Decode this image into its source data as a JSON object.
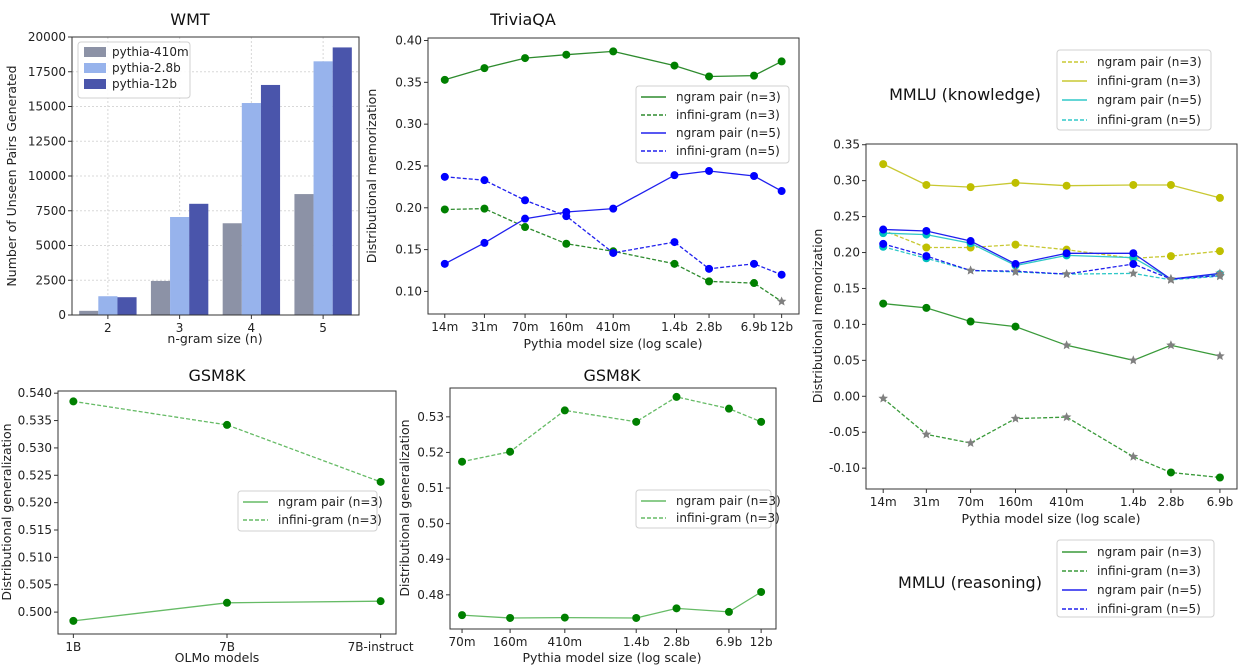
{
  "chart_data": [
    {
      "id": "wmt",
      "type": "bar",
      "title": "WMT",
      "xlabel": "n-gram size (n)",
      "ylabel": "Number of Unseen Pairs Generated",
      "categories": [
        "2",
        "3",
        "4",
        "5"
      ],
      "ylim": [
        0,
        20000
      ],
      "yticks": [
        "0",
        "2500",
        "5000",
        "7500",
        "10000",
        "12500",
        "15000",
        "17500",
        "20000"
      ],
      "ytick_values": [
        0,
        2500,
        5000,
        7500,
        10000,
        12500,
        15000,
        17500,
        20000
      ],
      "grid": true,
      "legend_placement": "top-left",
      "series": [
        {
          "name": "pythia-410m",
          "color": "#8c92a6",
          "values": [
            300,
            2450,
            6600,
            8700
          ]
        },
        {
          "name": "pythia-2.8b",
          "color": "#97b3ec",
          "values": [
            1350,
            7050,
            15250,
            18250
          ]
        },
        {
          "name": "pythia-12b",
          "color": "#4a55ab",
          "values": [
            1280,
            8000,
            16550,
            19250
          ]
        }
      ]
    },
    {
      "id": "trivia",
      "type": "line",
      "title": "TriviaQA",
      "xlabel": "Pythia model size (log scale)",
      "ylabel": "Distributional memorization",
      "xscale": "log",
      "x": [
        "14m",
        "31m",
        "70m",
        "160m",
        "410m",
        "1.4b",
        "2.8b",
        "6.9b",
        "12b"
      ],
      "x_values": [
        14000000,
        31000000,
        70000000,
        160000000,
        410000000,
        1400000000,
        2800000000,
        6900000000,
        12000000000
      ],
      "xlim": [
        10000000,
        17000000000
      ],
      "ylim": [
        0.073,
        0.403
      ],
      "yticks": [
        "0.10",
        "0.15",
        "0.20",
        "0.25",
        "0.30",
        "0.35",
        "0.40"
      ],
      "ytick_values": [
        0.1,
        0.15,
        0.2,
        0.25,
        0.3,
        0.35,
        0.4
      ],
      "grid": false,
      "legend_placement": "center-right",
      "series": [
        {
          "name": "ngram pair (n=3)",
          "color": "#008000",
          "line_color": "#2e8b2e",
          "dash": false,
          "values": [
            0.353,
            0.367,
            0.379,
            0.383,
            0.387,
            0.37,
            0.357,
            0.358,
            0.375
          ],
          "star_indices": []
        },
        {
          "name": "infini-gram (n=3)",
          "color": "#008000",
          "line_color": "#2e8b2e",
          "dash": true,
          "values": [
            0.198,
            0.199,
            0.177,
            0.157,
            0.148,
            0.133,
            0.112,
            0.11,
            0.088
          ],
          "star_indices": [
            8
          ]
        },
        {
          "name": "ngram pair (n=5)",
          "color": "#0000ff",
          "line_color": "#2020ee",
          "dash": false,
          "values": [
            0.133,
            0.158,
            0.187,
            0.195,
            0.199,
            0.239,
            0.244,
            0.238,
            0.22
          ],
          "star_indices": []
        },
        {
          "name": "infini-gram (n=5)",
          "color": "#0000ff",
          "line_color": "#2020ee",
          "dash": true,
          "values": [
            0.237,
            0.233,
            0.209,
            0.19,
            0.146,
            0.159,
            0.127,
            0.133,
            0.12
          ],
          "star_indices": []
        }
      ]
    },
    {
      "id": "mmlu",
      "type": "line",
      "titles": [
        "MMLU (knowledge)",
        "MMLU (reasoning)"
      ],
      "xlabel": "Pythia model size (log scale)",
      "ylabel": "Distributional memorization",
      "xscale": "log",
      "x": [
        "14m",
        "31m",
        "70m",
        "160m",
        "410m",
        "1.4b",
        "2.8b",
        "6.9b"
      ],
      "x_values": [
        14000000,
        31000000,
        70000000,
        160000000,
        410000000,
        1400000000,
        2800000000,
        6900000000
      ],
      "xlim": [
        10200000,
        9450000000
      ],
      "ylim": [
        -0.129,
        0.351
      ],
      "yticks": [
        "-0.10",
        "-0.05",
        "0.00",
        "0.05",
        "0.10",
        "0.15",
        "0.20",
        "0.25",
        "0.30",
        "0.35"
      ],
      "ytick_values": [
        -0.1,
        -0.05,
        0.0,
        0.05,
        0.1,
        0.15,
        0.2,
        0.25,
        0.3,
        0.35
      ],
      "grid": false,
      "legend_placement": "outside (above and below)",
      "series": [
        {
          "legend": "knowledge",
          "name": "ngram pair (n=3)",
          "color": "#bfbf00",
          "line_color": "#c8c832",
          "dash": true,
          "values": [
            0.231,
            0.207,
            0.207,
            0.211,
            0.204,
            0.192,
            0.195,
            0.202
          ],
          "star_indices": []
        },
        {
          "legend": "knowledge",
          "name": "infini-gram (n=3)",
          "color": "#bfbf00",
          "line_color": "#c8c832",
          "dash": false,
          "values": [
            0.323,
            0.294,
            0.291,
            0.297,
            0.293,
            0.294,
            0.294,
            0.276
          ],
          "star_indices": []
        },
        {
          "legend": "knowledge",
          "name": "ngram pair (n=5)",
          "color": "#00bfbf",
          "line_color": "#30c8c8",
          "dash": false,
          "values": [
            0.227,
            0.225,
            0.213,
            0.182,
            0.196,
            0.193,
            0.163,
            0.17
          ],
          "star_indices": [
            6
          ]
        },
        {
          "legend": "knowledge",
          "name": "infini-gram (n=5)",
          "color": "#00bfbf",
          "line_color": "#30c8c8",
          "dash": true,
          "values": [
            0.208,
            0.192,
            0.175,
            0.173,
            0.17,
            0.171,
            0.162,
            0.167
          ],
          "star_indices": [
            2,
            3,
            4,
            5,
            6,
            7
          ]
        },
        {
          "legend": "reasoning",
          "name": "ngram pair (n=3)",
          "color": "#008000",
          "line_color": "#3a9a3a",
          "dash": false,
          "values": [
            0.129,
            0.123,
            0.104,
            0.097,
            0.071,
            0.05,
            0.071,
            0.056
          ],
          "star_indices": [
            4,
            5,
            6,
            7
          ]
        },
        {
          "legend": "reasoning",
          "name": "infini-gram (n=3)",
          "color": "#008000",
          "line_color": "#3a9a3a",
          "dash": true,
          "values": [
            -0.003,
            -0.053,
            -0.065,
            -0.031,
            -0.029,
            -0.084,
            -0.106,
            -0.113
          ],
          "star_indices": [
            0,
            1,
            2,
            3,
            4,
            5
          ]
        },
        {
          "legend": "reasoning",
          "name": "ngram pair (n=5)",
          "color": "#0000ff",
          "line_color": "#2020ee",
          "dash": false,
          "values": [
            0.232,
            0.23,
            0.216,
            0.184,
            0.199,
            0.199,
            0.163,
            0.171
          ],
          "star_indices": [
            6,
            7
          ]
        },
        {
          "legend": "reasoning",
          "name": "infini-gram (n=5)",
          "color": "#0000ff",
          "line_color": "#2020ee",
          "dash": true,
          "values": [
            0.212,
            0.195,
            0.175,
            0.174,
            0.17,
            0.184,
            0.163,
            0.168
          ],
          "star_indices": [
            2,
            3,
            4,
            6,
            7
          ]
        }
      ]
    },
    {
      "id": "gsmL",
      "type": "line",
      "title": "GSM8K",
      "xlabel": "OLMo models",
      "ylabel": "Distributional generalization",
      "xscale": "categorical",
      "x": [
        "1B",
        "7B",
        "7B-instruct"
      ],
      "ylim": [
        0.496,
        0.5404
      ],
      "yticks": [
        "0.500",
        "0.505",
        "0.510",
        "0.515",
        "0.520",
        "0.525",
        "0.530",
        "0.535",
        "0.540"
      ],
      "ytick_values": [
        0.5,
        0.505,
        0.51,
        0.515,
        0.52,
        0.525,
        0.53,
        0.535,
        0.54
      ],
      "grid": false,
      "legend_placement": "center-right",
      "series": [
        {
          "name": "ngram pair (n=3)",
          "color": "#008000",
          "line_color": "#66bb66",
          "dash": false,
          "values": [
            0.4984,
            0.5017,
            0.502
          ],
          "star_indices": []
        },
        {
          "name": "infini-gram (n=3)",
          "color": "#008000",
          "line_color": "#66bb66",
          "dash": true,
          "values": [
            0.5385,
            0.5342,
            0.5238
          ],
          "star_indices": []
        }
      ]
    },
    {
      "id": "gsmR",
      "type": "line",
      "title": "GSM8K",
      "xlabel": "Pythia model size (log scale)",
      "ylabel": "Distributional generalization",
      "xscale": "log",
      "x": [
        "70m",
        "160m",
        "410m",
        "1.4b",
        "2.8b",
        "6.9b",
        "12b"
      ],
      "x_values": [
        70000000,
        160000000,
        410000000,
        1400000000,
        2800000000,
        6900000000,
        12000000000
      ],
      "xlim": [
        56900000,
        15500000000
      ],
      "ylim": [
        0.4704,
        0.5381
      ],
      "yticks": [
        "0.48",
        "0.49",
        "0.50",
        "0.51",
        "0.52",
        "0.53"
      ],
      "ytick_values": [
        0.48,
        0.49,
        0.5,
        0.51,
        0.52,
        0.53
      ],
      "grid": false,
      "legend_placement": "center-right",
      "series": [
        {
          "name": "ngram pair (n=3)",
          "color": "#008000",
          "line_color": "#66bb66",
          "dash": false,
          "values": [
            0.4743,
            0.4735,
            0.4736,
            0.4735,
            0.4762,
            0.4752,
            0.4808
          ],
          "star_indices": []
        },
        {
          "name": "infini-gram (n=3)",
          "color": "#008000",
          "line_color": "#66bb66",
          "dash": true,
          "values": [
            0.5174,
            0.5202,
            0.5318,
            0.5286,
            0.5356,
            0.5323,
            0.5286
          ],
          "star_indices": []
        }
      ]
    }
  ]
}
